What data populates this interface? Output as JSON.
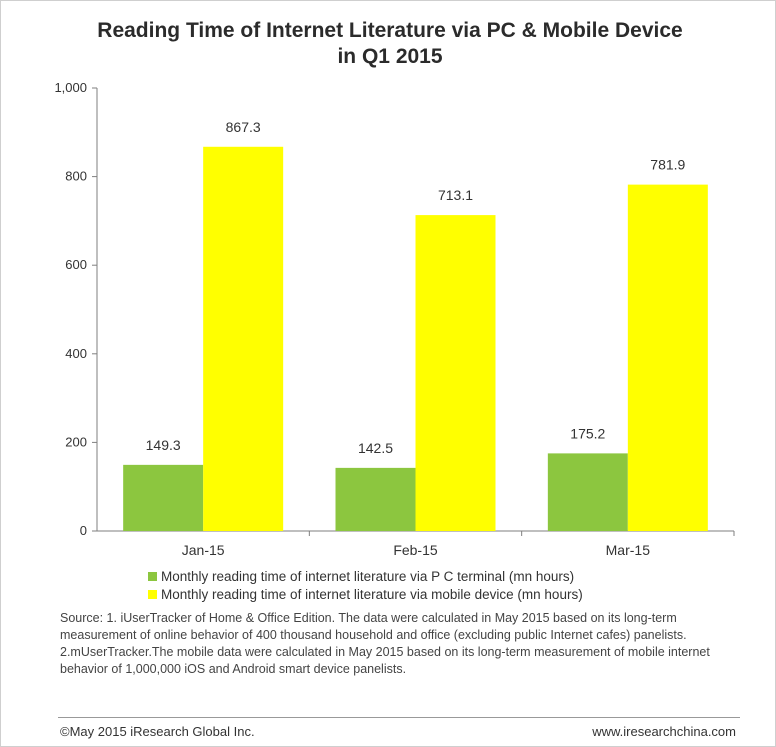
{
  "chart_data": {
    "type": "bar",
    "title_line1": "Reading Time of Internet Literature via PC & Mobile Device",
    "title_line2": "in Q1 2015",
    "categories": [
      "Jan-15",
      "Feb-15",
      "Mar-15"
    ],
    "series": [
      {
        "name": "Monthly reading time of internet literature via P C terminal (mn hours)",
        "values": [
          149.3,
          142.5,
          175.2
        ],
        "color": "#8cc63f"
      },
      {
        "name": "Monthly reading time of internet literature via mobile device (mn hours)",
        "values": [
          867.3,
          713.1,
          781.9
        ],
        "color": "#ffff00"
      }
    ],
    "value_labels": [
      [
        "149.3",
        "142.5",
        "175.2"
      ],
      [
        "867.3",
        "713.1",
        "781.9"
      ]
    ],
    "ylim": [
      0,
      1000
    ],
    "yticks": [
      0,
      200,
      400,
      600,
      800,
      1000
    ],
    "ytick_labels": [
      "0",
      "200",
      "400",
      "600",
      "800",
      "1,000"
    ],
    "legend_position": "bottom",
    "grid": false
  },
  "source_text": "Source: 1. iUserTracker of Home & Office Edition. The data were calculated in May 2015 based on its long-term measurement of online behavior of 400 thousand household and office (excluding public Internet cafes) panelists. 2.mUserTracker.The mobile data were calculated in May 2015  based on its long-term measurement of mobile internet behavior of 1,000,000  iOS and Android smart device panelists.",
  "footer": {
    "copyright": "©May 2015 iResearch Global Inc.",
    "website": "www.iresearchchina.com"
  }
}
